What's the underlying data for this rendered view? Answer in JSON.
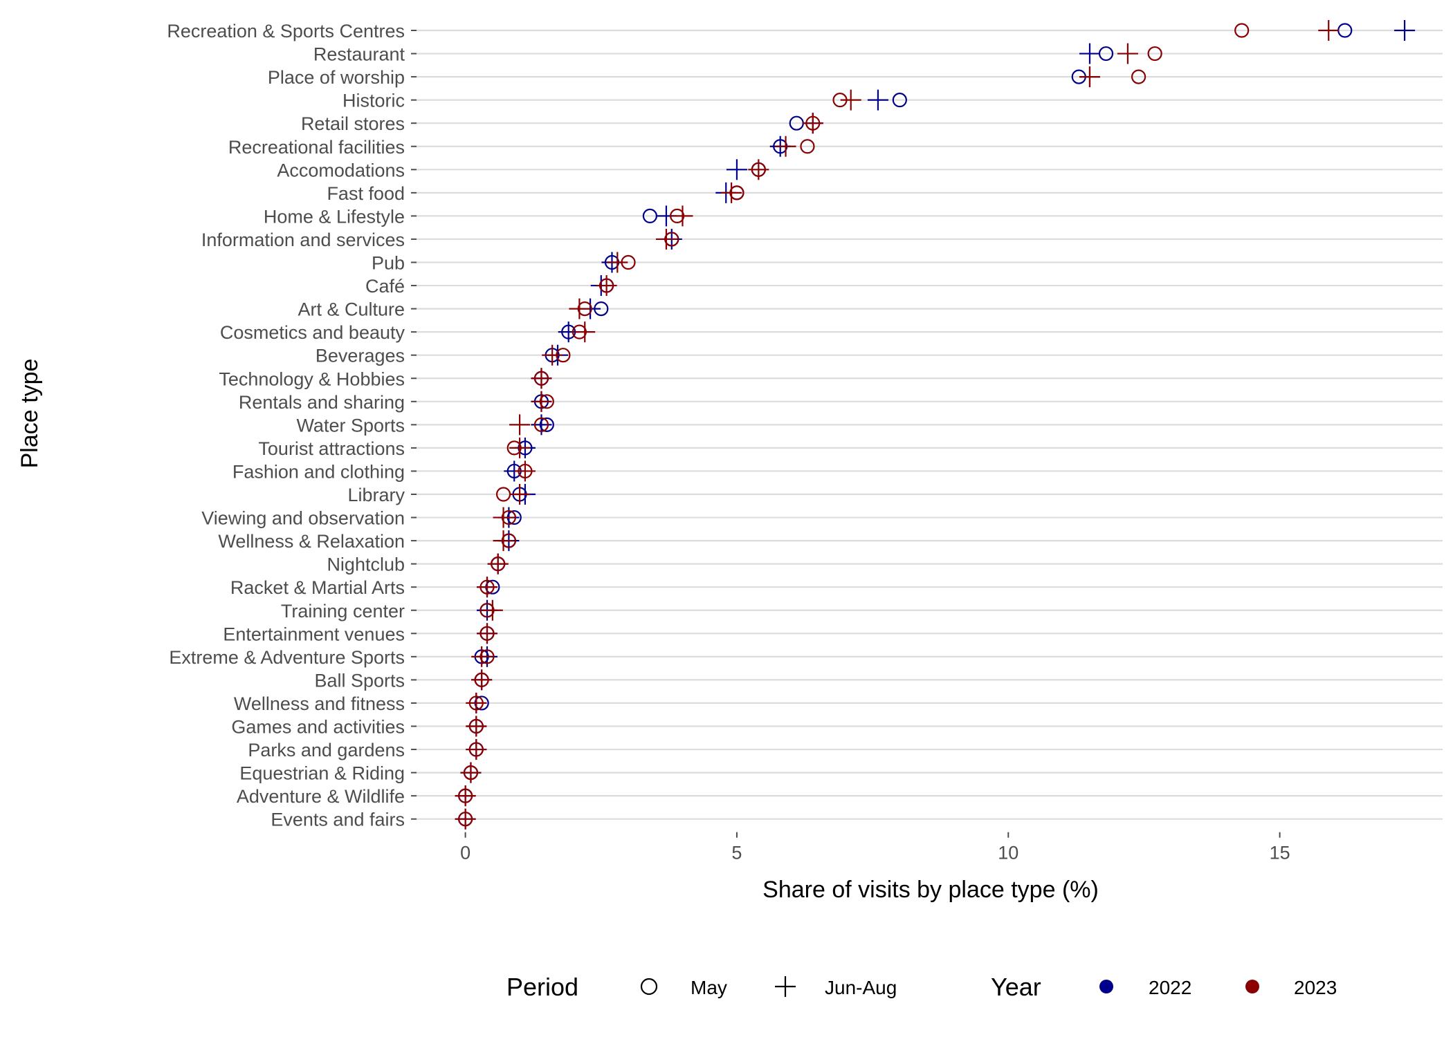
{
  "colors": {
    "y2022": "#00008B",
    "y2023": "#8B0000"
  },
  "chart_data": {
    "type": "scatter",
    "xlabel": "Share of visits by place type (%)",
    "ylabel": "Place type",
    "xlim": [
      -0.9,
      18.0
    ],
    "x_ticks": [
      0,
      5,
      10,
      15
    ],
    "grid": "horizontal major lines",
    "legend": {
      "placement": "bottom",
      "period_title": "Period",
      "period_items": [
        {
          "label": "May",
          "shape": "circle"
        },
        {
          "label": "Jun-Aug",
          "shape": "plus"
        }
      ],
      "year_title": "Year",
      "year_items": [
        {
          "label": "2022",
          "color": "#00008B"
        },
        {
          "label": "2023",
          "color": "#8B0000"
        }
      ]
    },
    "series_keys": [
      "may_2022",
      "junaug_2022",
      "may_2023",
      "junaug_2023"
    ],
    "categories": [
      {
        "name": "Recreation & Sports Centres",
        "may_2022": 16.2,
        "junaug_2022": 17.3,
        "may_2023": 14.3,
        "junaug_2023": 15.9
      },
      {
        "name": "Restaurant",
        "may_2022": 11.8,
        "junaug_2022": 11.5,
        "may_2023": 12.7,
        "junaug_2023": 12.2
      },
      {
        "name": "Place of worship",
        "may_2022": 11.3,
        "junaug_2022": 11.5,
        "may_2023": 12.4,
        "junaug_2023": 11.5
      },
      {
        "name": "Historic",
        "may_2022": 8.0,
        "junaug_2022": 7.6,
        "may_2023": 6.9,
        "junaug_2023": 7.1
      },
      {
        "name": "Retail stores",
        "may_2022": 6.1,
        "junaug_2022": 6.4,
        "may_2023": 6.4,
        "junaug_2023": 6.4
      },
      {
        "name": "Recreational facilities",
        "may_2022": 5.8,
        "junaug_2022": 5.8,
        "may_2023": 6.3,
        "junaug_2023": 5.9
      },
      {
        "name": "Accomodations",
        "may_2022": 5.4,
        "junaug_2022": 5.0,
        "may_2023": 5.4,
        "junaug_2023": 5.4
      },
      {
        "name": "Fast food",
        "may_2022": 5.0,
        "junaug_2022": 4.8,
        "may_2023": 5.0,
        "junaug_2023": 4.9
      },
      {
        "name": "Home & Lifestyle",
        "may_2022": 3.4,
        "junaug_2022": 3.7,
        "may_2023": 3.9,
        "junaug_2023": 4.0
      },
      {
        "name": "Information and services",
        "may_2022": 3.8,
        "junaug_2022": 3.8,
        "may_2023": 3.8,
        "junaug_2023": 3.7
      },
      {
        "name": "Pub",
        "may_2022": 2.7,
        "junaug_2022": 2.7,
        "may_2023": 3.0,
        "junaug_2023": 2.8
      },
      {
        "name": "Café",
        "may_2022": 2.6,
        "junaug_2022": 2.5,
        "may_2023": 2.6,
        "junaug_2023": 2.6
      },
      {
        "name": "Art & Culture",
        "may_2022": 2.5,
        "junaug_2022": 2.3,
        "may_2023": 2.2,
        "junaug_2023": 2.1
      },
      {
        "name": "Cosmetics and beauty",
        "may_2022": 1.9,
        "junaug_2022": 1.9,
        "may_2023": 2.1,
        "junaug_2023": 2.2
      },
      {
        "name": "Beverages",
        "may_2022": 1.6,
        "junaug_2022": 1.7,
        "may_2023": 1.8,
        "junaug_2023": 1.6
      },
      {
        "name": "Technology & Hobbies",
        "may_2022": 1.4,
        "junaug_2022": 1.4,
        "may_2023": 1.4,
        "junaug_2023": 1.4
      },
      {
        "name": "Rentals and sharing",
        "may_2022": 1.4,
        "junaug_2022": 1.4,
        "may_2023": 1.5,
        "junaug_2023": 1.4
      },
      {
        "name": "Water Sports",
        "may_2022": 1.5,
        "junaug_2022": 1.4,
        "may_2023": 1.4,
        "junaug_2023": 1.0
      },
      {
        "name": "Tourist attractions",
        "may_2022": 1.1,
        "junaug_2022": 1.1,
        "may_2023": 0.9,
        "junaug_2023": 1.0
      },
      {
        "name": "Fashion and clothing",
        "may_2022": 0.9,
        "junaug_2022": 0.9,
        "may_2023": 1.1,
        "junaug_2023": 1.1
      },
      {
        "name": "Library",
        "may_2022": 1.0,
        "junaug_2022": 1.1,
        "may_2023": 0.7,
        "junaug_2023": 1.0
      },
      {
        "name": "Viewing and observation",
        "may_2022": 0.9,
        "junaug_2022": 0.8,
        "may_2023": 0.8,
        "junaug_2023": 0.7
      },
      {
        "name": "Wellness & Relaxation",
        "may_2022": 0.8,
        "junaug_2022": 0.8,
        "may_2023": 0.8,
        "junaug_2023": 0.7
      },
      {
        "name": "Nightclub",
        "may_2022": 0.6,
        "junaug_2022": 0.6,
        "may_2023": 0.6,
        "junaug_2023": 0.6
      },
      {
        "name": "Racket & Martial Arts",
        "may_2022": 0.5,
        "junaug_2022": 0.4,
        "may_2023": 0.4,
        "junaug_2023": 0.4
      },
      {
        "name": "Training center",
        "may_2022": 0.4,
        "junaug_2022": 0.4,
        "may_2023": 0.4,
        "junaug_2023": 0.5
      },
      {
        "name": "Entertainment venues",
        "may_2022": 0.4,
        "junaug_2022": 0.4,
        "may_2023": 0.4,
        "junaug_2023": 0.4
      },
      {
        "name": "Extreme & Adventure Sports",
        "may_2022": 0.3,
        "junaug_2022": 0.4,
        "may_2023": 0.4,
        "junaug_2023": 0.3
      },
      {
        "name": "Ball Sports",
        "may_2022": 0.3,
        "junaug_2022": 0.3,
        "may_2023": 0.3,
        "junaug_2023": 0.3
      },
      {
        "name": "Wellness and fitness",
        "may_2022": 0.3,
        "junaug_2022": 0.2,
        "may_2023": 0.2,
        "junaug_2023": 0.2
      },
      {
        "name": "Games and activities",
        "may_2022": 0.2,
        "junaug_2022": 0.2,
        "may_2023": 0.2,
        "junaug_2023": 0.2
      },
      {
        "name": "Parks and gardens",
        "may_2022": 0.2,
        "junaug_2022": 0.2,
        "may_2023": 0.2,
        "junaug_2023": 0.2
      },
      {
        "name": "Equestrian & Riding",
        "may_2022": 0.1,
        "junaug_2022": 0.1,
        "may_2023": 0.1,
        "junaug_2023": 0.1
      },
      {
        "name": "Adventure & Wildlife",
        "may_2022": 0.0,
        "junaug_2022": 0.0,
        "may_2023": 0.0,
        "junaug_2023": 0.0
      },
      {
        "name": "Events and fairs",
        "may_2022": 0.0,
        "junaug_2022": 0.0,
        "may_2023": 0.0,
        "junaug_2023": 0.0
      }
    ]
  }
}
